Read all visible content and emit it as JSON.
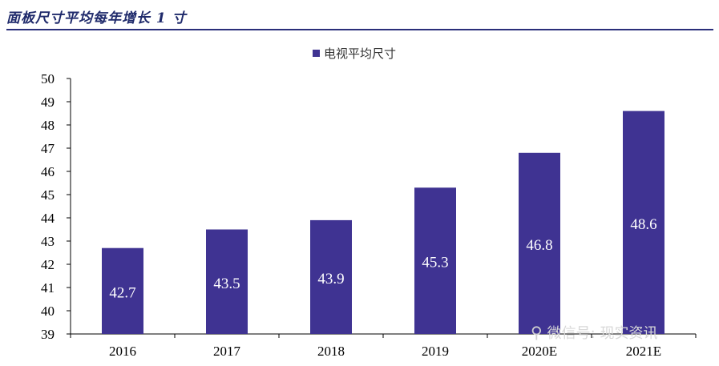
{
  "header": {
    "title": "面板尺寸平均每年增长 1 寸"
  },
  "chart_data": {
    "type": "bar",
    "categories": [
      "2016",
      "2017",
      "2018",
      "2019",
      "2020E",
      "2021E"
    ],
    "series": [
      {
        "name": "电视平均尺寸",
        "values": [
          42.7,
          43.5,
          43.9,
          45.3,
          46.8,
          48.6
        ]
      }
    ],
    "data_labels": [
      "42.7",
      "43.5",
      "43.9",
      "45.3",
      "46.8",
      "48.6"
    ],
    "ylim": [
      39,
      50
    ],
    "yticks": [
      39,
      40,
      41,
      42,
      43,
      44,
      45,
      46,
      47,
      48,
      49,
      50
    ],
    "legend_position": "top-center",
    "grid": false,
    "bar_color": "#3f3392",
    "label_color": "#ffffff"
  },
  "watermark": {
    "icon": "wechat-icon",
    "text": "微信号: 现实资讯"
  }
}
